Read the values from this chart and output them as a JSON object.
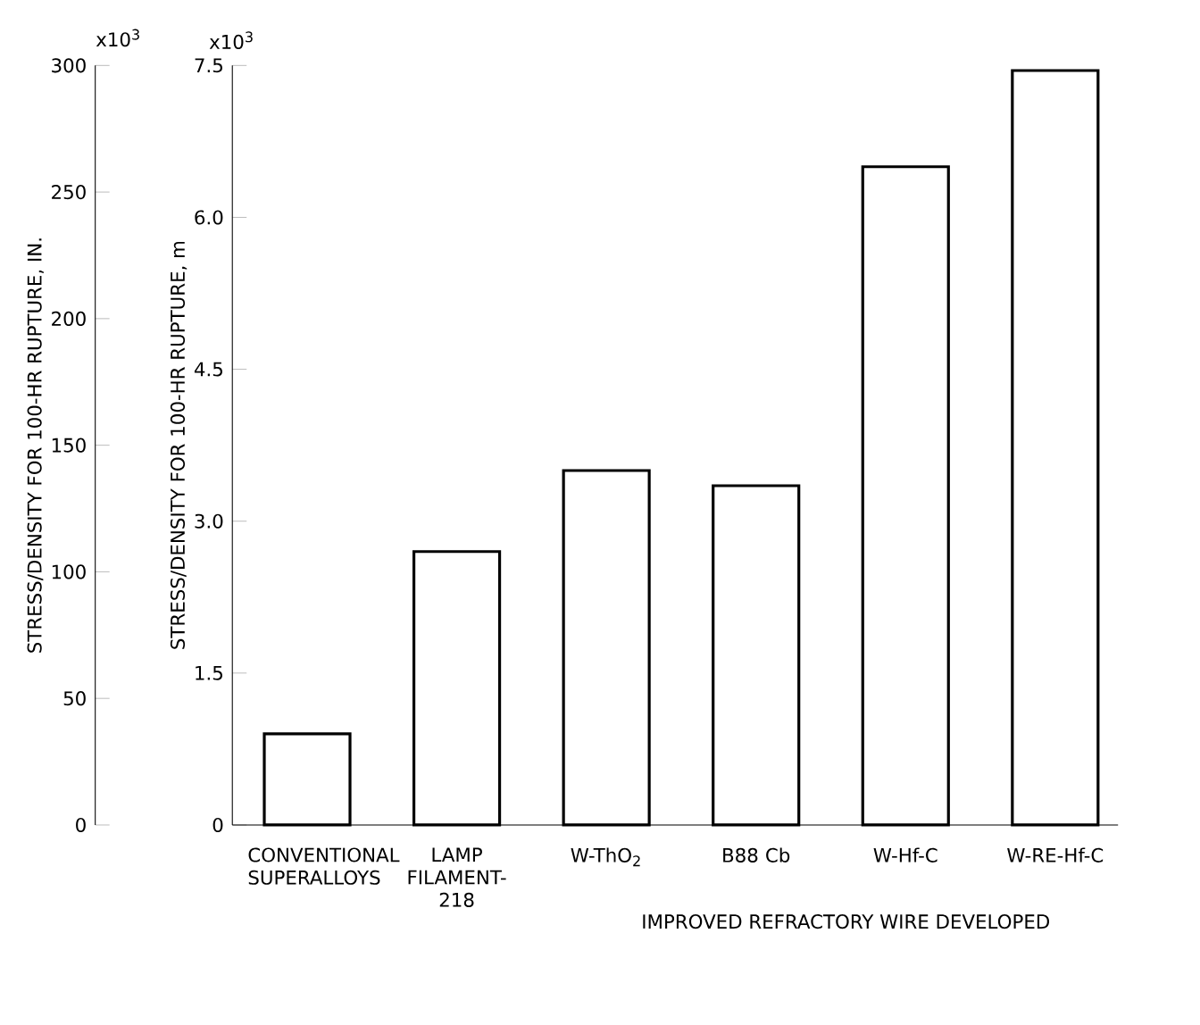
{
  "chart_data": {
    "type": "bar",
    "categories": [
      "CONVENTIONAL SUPERALLOYS",
      "LAMP FILAMENT-218",
      "W-ThO$_{2}$",
      "B88 Cb",
      "W-Hf-C",
      "W-RE-Hf-C"
    ],
    "values": [
      0.9,
      2.7,
      3.5,
      3.35,
      6.5,
      7.45
    ],
    "color": "#ffffff",
    "ylabel": "STRESS/DENSITY FOR 100-HR RUPTURE, m",
    "y2label": "STRESS/DENSITY FOR 100-HR RUPTURE, IN.",
    "ylim": [
      0,
      7.5
    ],
    "yticks": [
      0,
      {
        "value": 1.5,
        "label": "1.5"
      },
      {
        "value": 3.0,
        "label": "3.0"
      },
      {
        "value": 4.5,
        "label": "4.5"
      },
      {
        "value": 6.0,
        "label": "6.0"
      },
      7.5
    ],
    "y2lim": [
      0,
      300
    ],
    "y2ticks": [
      0,
      50,
      100,
      150,
      200,
      250,
      300
    ],
    "annotations": [
      "IMPROVED REFRACTORY WIRE DEVELOPED",
      "x10$^{3}$",
      "x10$^{3}$"
    ]
  }
}
